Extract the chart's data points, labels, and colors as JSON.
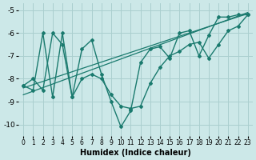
{
  "xlabel": "Humidex (Indice chaleur)",
  "bg_color": "#cce8e8",
  "grid_color": "#aacfcf",
  "line_color": "#1a7a6e",
  "xlim": [
    -0.5,
    23.5
  ],
  "ylim": [
    -10.5,
    -4.7
  ],
  "xticks": [
    0,
    1,
    2,
    3,
    4,
    5,
    6,
    7,
    8,
    9,
    10,
    11,
    12,
    13,
    14,
    15,
    16,
    17,
    18,
    19,
    20,
    21,
    22,
    23
  ],
  "yticks": [
    -10,
    -9,
    -8,
    -7,
    -6,
    -5
  ],
  "curve1_x": [
    0,
    1,
    2,
    3,
    4,
    5,
    6,
    7,
    8,
    9,
    10,
    11,
    12,
    13,
    14,
    15,
    16,
    17,
    18,
    19,
    20,
    21,
    22,
    23
  ],
  "curve1_y": [
    -8.3,
    -8.0,
    -8.5,
    -6.0,
    -6.5,
    -8.8,
    -6.7,
    -6.3,
    -7.8,
    -9.0,
    -10.1,
    -9.4,
    -7.3,
    -6.7,
    -6.6,
    -7.1,
    -6.0,
    -5.9,
    -7.0,
    -6.1,
    -5.3,
    -5.3,
    -5.2,
    -5.2
  ],
  "curve2_x": [
    0,
    1,
    2,
    3,
    4,
    5,
    6,
    7,
    8,
    9,
    10,
    11,
    12,
    13,
    14,
    15,
    16,
    17,
    18,
    19,
    20,
    21,
    22,
    23
  ],
  "curve2_y": [
    -8.3,
    -8.5,
    -6.0,
    -8.8,
    -6.0,
    -8.8,
    -8.0,
    -7.8,
    -8.0,
    -8.7,
    -9.2,
    -9.3,
    -9.2,
    -8.2,
    -7.5,
    -7.0,
    -6.8,
    -6.5,
    -6.4,
    -7.1,
    -6.5,
    -5.9,
    -5.7,
    -5.2
  ],
  "trend_x": [
    0,
    23
  ],
  "trend_y": [
    -8.7,
    -5.1
  ],
  "trend2_x": [
    0,
    23
  ],
  "trend2_y": [
    -8.4,
    -5.15
  ]
}
